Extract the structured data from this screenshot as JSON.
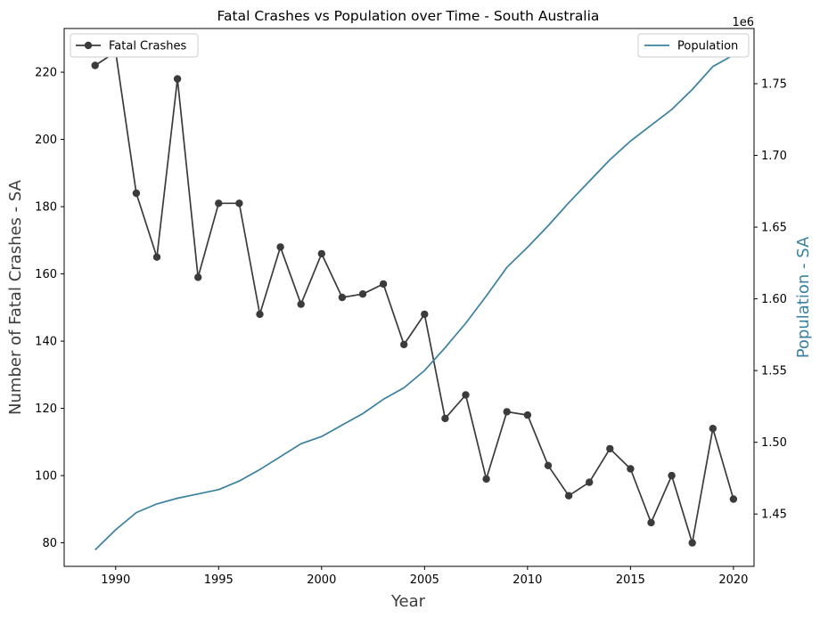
{
  "chart_data": {
    "type": "line",
    "title": "Fatal Crashes vs Population over Time - South Australia",
    "xlabel": "Year",
    "ylabel_left": "Number of Fatal Crashes - SA",
    "ylabel_right": "Population - SA",
    "right_axis_offset_label": "1e6",
    "xlim": [
      1987.5,
      2021.0
    ],
    "ylim_left": [
      73,
      233
    ],
    "ylim_right": [
      1.4135,
      1.7885
    ],
    "x_ticks": [
      1990,
      1995,
      2000,
      2005,
      2010,
      2015,
      2020
    ],
    "y_left_ticks": [
      80,
      100,
      120,
      140,
      160,
      180,
      200,
      220
    ],
    "y_right_ticks": [
      "1.45",
      "1.50",
      "1.55",
      "1.60",
      "1.65",
      "1.70",
      "1.75"
    ],
    "y_right_tick_values": [
      1.45,
      1.5,
      1.55,
      1.6,
      1.65,
      1.7,
      1.75
    ],
    "grid": false,
    "x": [
      1989,
      1990,
      1991,
      1992,
      1993,
      1994,
      1995,
      1996,
      1997,
      1998,
      1999,
      2000,
      2001,
      2002,
      2003,
      2004,
      2005,
      2006,
      2007,
      2008,
      2009,
      2010,
      2011,
      2012,
      2013,
      2014,
      2015,
      2016,
      2017,
      2018,
      2019,
      2020
    ],
    "series": [
      {
        "name": "Fatal Crashes",
        "axis": "left",
        "color": "#3b3b3b",
        "marker": "circle",
        "legend_position": "upper-left",
        "values": [
          222,
          226,
          184,
          165,
          218,
          159,
          181,
          181,
          148,
          168,
          151,
          166,
          153,
          154,
          157,
          139,
          148,
          117,
          124,
          99,
          119,
          118,
          103,
          94,
          98,
          108,
          102,
          86,
          100,
          80,
          114,
          93
        ]
      },
      {
        "name": "Population",
        "axis": "right",
        "color": "#3a80a0",
        "marker": "none",
        "legend_position": "upper-right",
        "values": [
          1.425,
          1.439,
          1.451,
          1.457,
          1.461,
          1.464,
          1.467,
          1.473,
          1.481,
          1.49,
          1.499,
          1.504,
          1.512,
          1.52,
          1.53,
          1.538,
          1.55,
          1.566,
          1.583,
          1.602,
          1.622,
          1.636,
          1.651,
          1.667,
          1.682,
          1.697,
          1.71,
          1.721,
          1.732,
          1.746,
          1.762,
          1.77
        ]
      }
    ]
  }
}
